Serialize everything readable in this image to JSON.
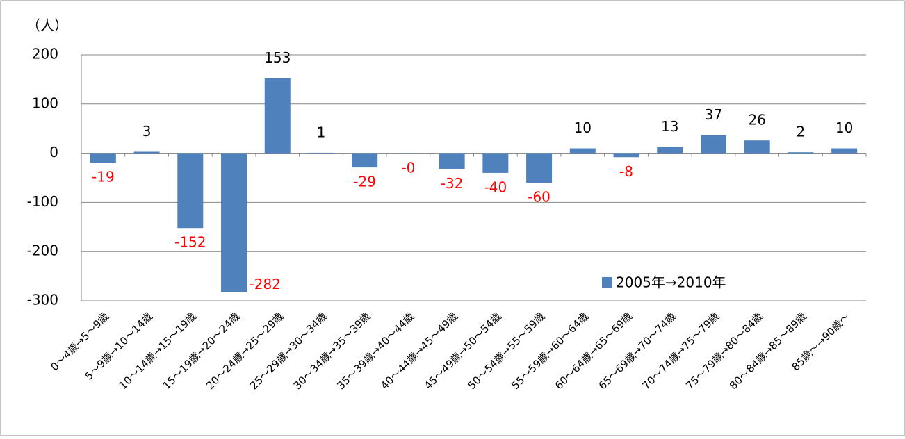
{
  "chart_data": {
    "type": "bar",
    "y_label": "（人）",
    "categories": [
      "0～4歳→5～9歳",
      "5～9歳→10～14歳",
      "10～14歳→15～19歳",
      "15～19歳→20～24歳",
      "20～24歳→25～29歳",
      "25～29歳→30～34歳",
      "30～34歳→35～39歳",
      "35～39歳→40～44歳",
      "40～44歳→45～49歳",
      "45～49歳→50～54歳",
      "50～54歳→55～59歳",
      "55～59歳→60～64歳",
      "60～64歳→65～69歳",
      "65～69歳→70～74歳",
      "70～74歳→75～79歳",
      "75～79歳→80～84歳",
      "80～84歳→85～89歳",
      "85歳～→90歳～"
    ],
    "series": [
      {
        "name": "2005年→2010年",
        "color": "#4f81bd",
        "values": [
          -19,
          3,
          -152,
          -282,
          153,
          1,
          -29,
          -0.3,
          -32,
          -40,
          -60,
          10,
          -8,
          13,
          37,
          26,
          2,
          10
        ],
        "value_labels": [
          "-19",
          "3",
          "-152",
          "-282",
          "153",
          "1",
          "-29",
          "-0",
          "-32",
          "-40",
          "-60",
          "10",
          "-8",
          "13",
          "37",
          "26",
          "2",
          "10"
        ]
      }
    ],
    "negative_label_color": "#ff0000",
    "ylim": [
      -300,
      200
    ],
    "yticks": [
      -300,
      -200,
      -100,
      0,
      100,
      200
    ],
    "grid": true,
    "legend": "lower-right"
  }
}
